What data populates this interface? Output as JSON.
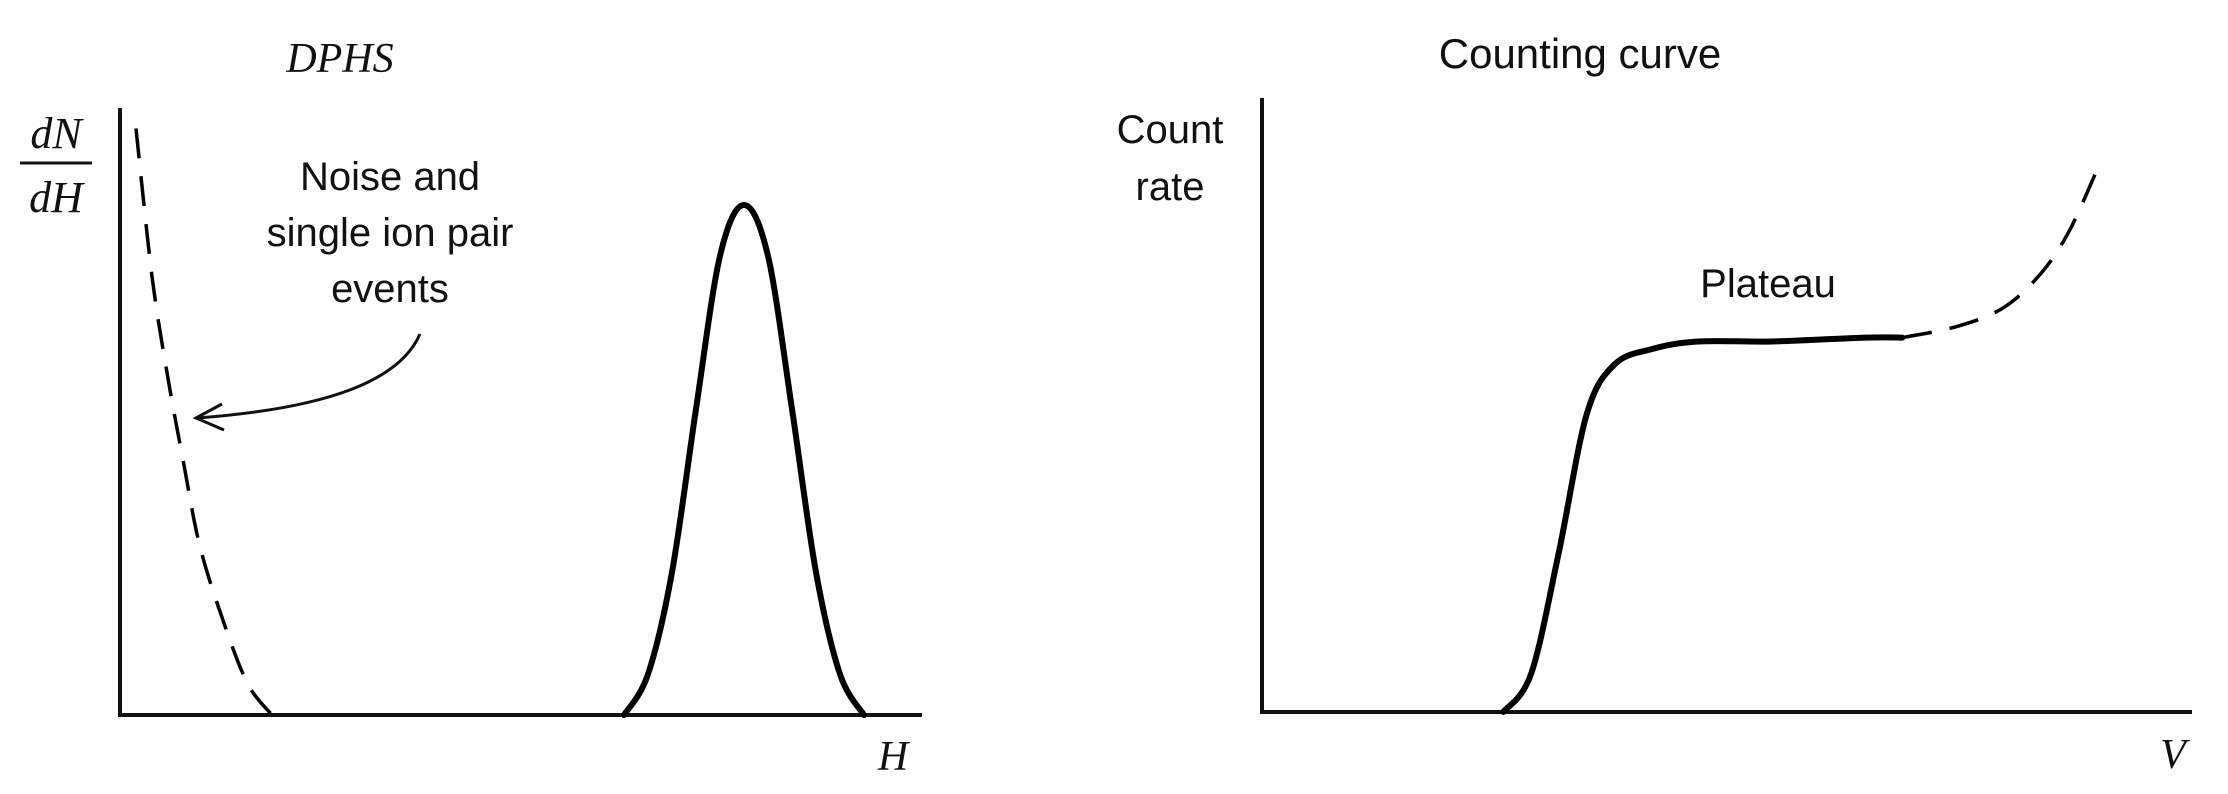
{
  "chart_data": [
    {
      "type": "line",
      "title": "DPHS",
      "xlabel": "H",
      "ylabel": {
        "numerator": "dN",
        "denominator": "dH"
      },
      "x_ticks": [],
      "y_ticks": [],
      "grid": false,
      "series": [
        {
          "style": "dashed",
          "x": [
            0.02,
            0.04,
            0.06,
            0.08,
            0.1,
            0.13,
            0.16,
            0.19
          ],
          "y": [
            1.15,
            0.86,
            0.66,
            0.49,
            0.33,
            0.18,
            0.06,
            0.0
          ]
        },
        {
          "style": "solid",
          "x": [
            0.63,
            0.66,
            0.69,
            0.72,
            0.75,
            0.78,
            0.81,
            0.84,
            0.87,
            0.9,
            0.93
          ],
          "y": [
            0.0,
            0.08,
            0.28,
            0.6,
            0.9,
            1.0,
            0.9,
            0.6,
            0.28,
            0.08,
            0.0
          ]
        }
      ],
      "annotations": [
        {
          "text_lines": [
            "Noise and",
            "single ion pair",
            "events"
          ],
          "arrow_to": [
            0.08,
            0.61
          ]
        }
      ]
    },
    {
      "type": "line",
      "title": "Counting curve",
      "xlabel": "V",
      "ylabel_lines": [
        "Count",
        "rate"
      ],
      "x_ticks": [],
      "y_ticks": [],
      "grid": false,
      "series": [
        {
          "style": "solid",
          "x": [
            0.26,
            0.29,
            0.32,
            0.35,
            0.38,
            0.42,
            0.47,
            0.55,
            0.65,
            0.69
          ],
          "y": [
            0.0,
            0.1,
            0.42,
            0.78,
            0.91,
            0.95,
            0.97,
            0.97,
            0.98,
            0.98
          ]
        },
        {
          "style": "dashed",
          "x": [
            0.69,
            0.75,
            0.8,
            0.84,
            0.87,
            0.9
          ],
          "y": [
            0.98,
            1.01,
            1.06,
            1.15,
            1.26,
            1.42
          ]
        }
      ],
      "annotations": [
        {
          "text": "Plateau"
        }
      ]
    }
  ]
}
